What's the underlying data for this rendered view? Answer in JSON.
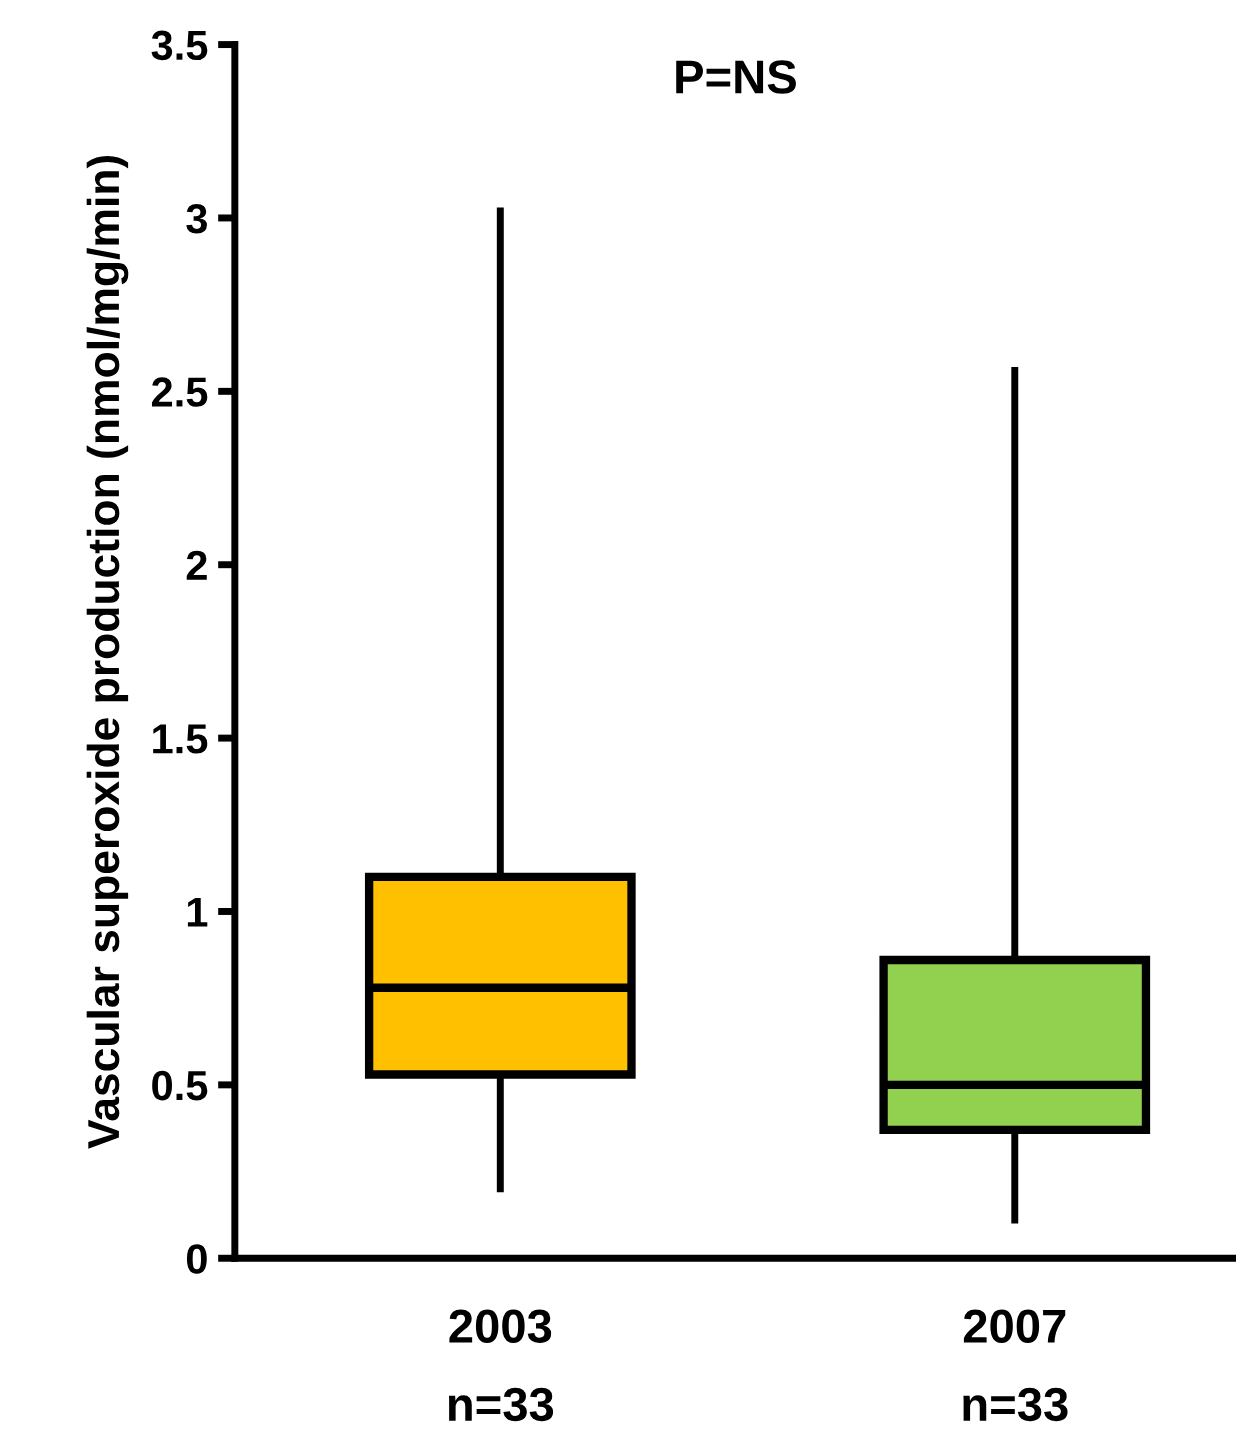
{
  "chart_data": {
    "type": "box",
    "categories": [
      "2003\nn=33",
      "2007\nn=33"
    ],
    "ylabel": "Vascular superoxide production (nmol/mg/min)",
    "annotations": [
      "P=NS"
    ],
    "colors": [
      "#ffc000",
      "#92d050"
    ],
    "boxes": [
      {
        "low": 0.2,
        "q1": 0.53,
        "median": 0.78,
        "q3": 1.1,
        "high": 3.02
      },
      {
        "low": 0.11,
        "q1": 0.37,
        "median": 0.5,
        "q3": 0.86,
        "high": 2.56
      }
    ],
    "ylim": [
      0,
      3.5
    ],
    "yticks": [
      0,
      0.5,
      1,
      1.5,
      2,
      2.5,
      3,
      3.5
    ],
    "grid": false,
    "legend": false
  }
}
